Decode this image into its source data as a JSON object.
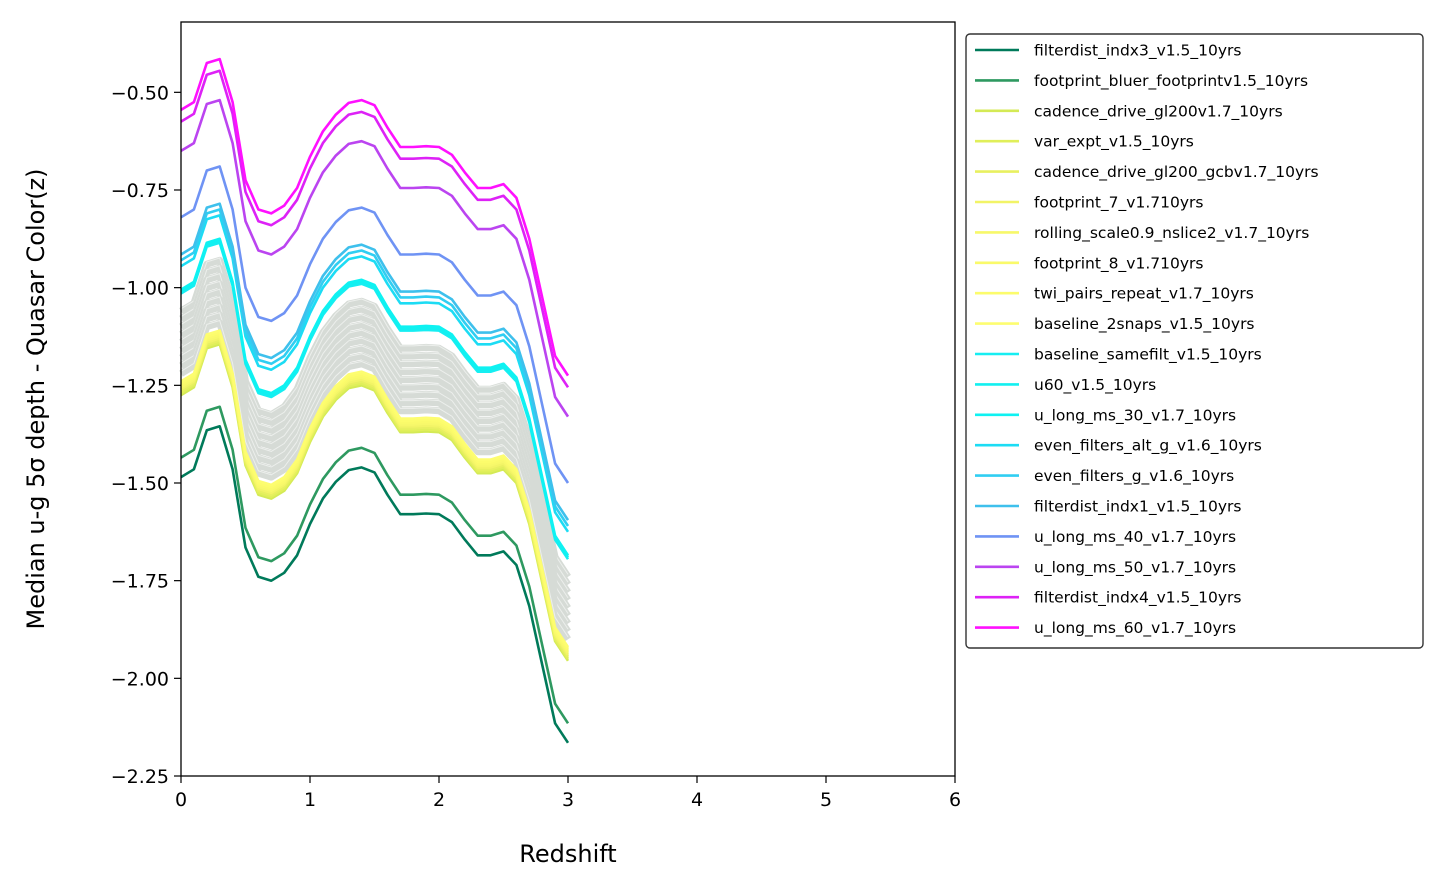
{
  "chart_data": {
    "type": "line",
    "xlabel": "Redshift",
    "ylabel": "Median u-g 5σ depth - Quasar Color(z)",
    "xlim": [
      0,
      6
    ],
    "ylim": [
      -2.25,
      -0.32
    ],
    "xticks": [
      0,
      1,
      2,
      3,
      4,
      5,
      6
    ],
    "yticks": [
      -2.25,
      -2.0,
      -1.75,
      -1.5,
      -1.25,
      -1.0,
      -0.75,
      -0.5
    ],
    "xtick_labels": [
      "0",
      "1",
      "2",
      "3",
      "4",
      "5",
      "6"
    ],
    "ytick_labels": [
      "−2.25",
      "−2.00",
      "−1.75",
      "−1.50",
      "−1.25",
      "−1.00",
      "−0.75",
      "−0.50"
    ],
    "legend_position": "outside-right",
    "grid": false,
    "x": [
      0.0,
      0.1,
      0.2,
      0.3,
      0.4,
      0.5,
      0.6,
      0.7,
      0.8,
      0.9,
      1.0,
      1.1,
      1.2,
      1.3,
      1.4,
      1.5,
      1.6,
      1.7,
      1.8,
      1.9,
      2.0,
      2.1,
      2.2,
      2.3,
      2.4,
      2.5,
      2.6,
      2.7,
      2.8,
      2.9,
      3.0
    ],
    "base_shape": [
      0.0,
      0.02,
      0.12,
      0.13,
      0.02,
      -0.18,
      -0.255,
      -0.265,
      -0.245,
      -0.2,
      -0.12,
      -0.055,
      -0.012,
      0.018,
      0.025,
      0.012,
      -0.045,
      -0.095,
      -0.095,
      -0.093,
      -0.095,
      -0.115,
      -0.16,
      -0.2,
      -0.2,
      -0.19,
      -0.225,
      -0.33,
      -0.48,
      -0.63,
      -0.68
    ],
    "background_series": {
      "color": "#d6dbd6",
      "offsets": [
        -1.06,
        -1.08,
        -1.1,
        -1.12,
        -1.14,
        -1.16,
        -1.18,
        -1.2,
        -1.22
      ]
    },
    "series": [
      {
        "name": "filterdist_indx3_v1.5_10yrs",
        "color": "#007a5a",
        "offset": -1.485
      },
      {
        "name": "footprint_bluer_footprintv1.5_10yrs",
        "color": "#2e9960",
        "offset": -1.435
      },
      {
        "name": "cadence_drive_gl200v1.7_10yrs",
        "color": "#d4ea55",
        "offset": -1.275
      },
      {
        "name": "var_expt_v1.5_10yrs",
        "color": "#e0ef5a",
        "offset": -1.27
      },
      {
        "name": "cadence_drive_gl200_gcbv1.7_10yrs",
        "color": "#e8f060",
        "offset": -1.265
      },
      {
        "name": "footprint_7_v1.710yrs",
        "color": "#f2f466",
        "offset": -1.26
      },
      {
        "name": "rolling_scale0.9_nslice2_v1.7_10yrs",
        "color": "#f7f86a",
        "offset": -1.255
      },
      {
        "name": "footprint_8_v1.710yrs",
        "color": "#fafa6a",
        "offset": -1.25
      },
      {
        "name": "twi_pairs_repeat_v1.7_10yrs",
        "color": "#fcfc6c",
        "offset": -1.245
      },
      {
        "name": "baseline_2snaps_v1.5_10yrs",
        "color": "#fdfd70",
        "offset": -1.24
      },
      {
        "name": "baseline_samefilt_v1.5_10yrs",
        "color": "#16eef2",
        "offset": -1.015
      },
      {
        "name": "u60_v1.5_10yrs",
        "color": "#12f0f0",
        "offset": -1.01
      },
      {
        "name": "u_long_ms_30_v1.7_10yrs",
        "color": "#0ef2f2",
        "offset": -1.005
      },
      {
        "name": "even_filters_alt_g_v1.6_10yrs",
        "color": "#1cdcf4",
        "offset": -0.945
      },
      {
        "name": "even_filters_g_v1.6_10yrs",
        "color": "#30cef2",
        "offset": -0.93
      },
      {
        "name": "filterdist_indx1_v1.5_10yrs",
        "color": "#3ec0ec",
        "offset": -0.915
      },
      {
        "name": "u_long_ms_40_v1.7_10yrs",
        "color": "#6f93f4",
        "offset": -0.82
      },
      {
        "name": "u_long_ms_50_v1.7_10yrs",
        "color": "#bb44f0",
        "offset": -0.65
      },
      {
        "name": "filterdist_indx4_v1.5_10yrs",
        "color": "#dd22f6",
        "offset": -0.575
      },
      {
        "name": "u_long_ms_60_v1.7_10yrs",
        "color": "#ff10ff",
        "offset": -0.545
      }
    ]
  }
}
